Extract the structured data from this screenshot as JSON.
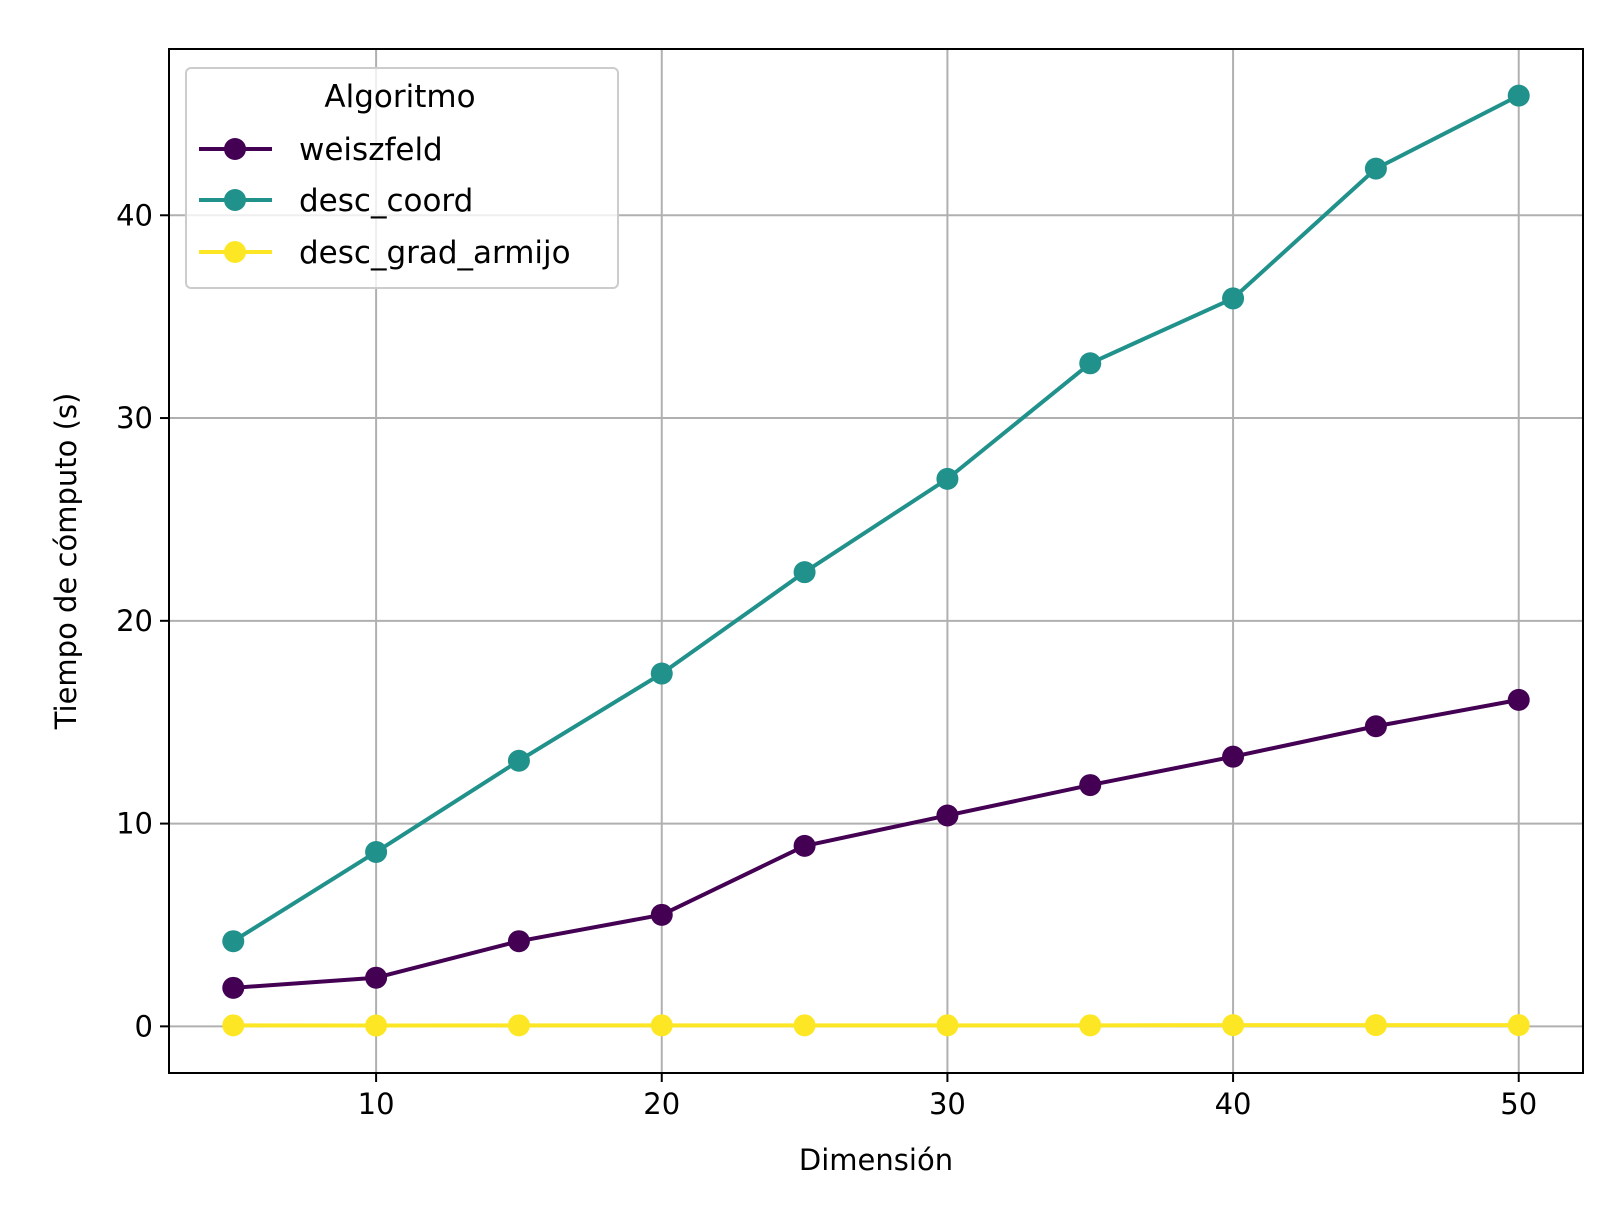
{
  "chart_data": {
    "type": "line",
    "title": "",
    "xlabel": "Dimensión",
    "ylabel": "Tiempo de cómputo (s)",
    "x": [
      5,
      10,
      15,
      20,
      25,
      30,
      35,
      40,
      45,
      50
    ],
    "xlim": [
      2.75,
      52.25
    ],
    "ylim": [
      -2.3,
      48.2
    ],
    "xticks": [
      10,
      20,
      30,
      40,
      50
    ],
    "yticks": [
      0,
      10,
      20,
      30,
      40
    ],
    "grid": true,
    "legend": {
      "title": "Algoritmo",
      "placement": "top-left"
    },
    "series": [
      {
        "name": "weiszfeld",
        "color": "#440154",
        "values": [
          1.9,
          2.4,
          4.2,
          5.5,
          8.9,
          10.4,
          11.9,
          13.3,
          14.8,
          16.1
        ]
      },
      {
        "name": "desc_coord",
        "color": "#21918c",
        "values": [
          4.2,
          8.6,
          13.1,
          17.4,
          22.4,
          27.0,
          32.7,
          35.9,
          42.3,
          45.9
        ]
      },
      {
        "name": "desc_grad_armijo",
        "color": "#fde725",
        "values": [
          0.05,
          0.04,
          0.05,
          0.05,
          0.05,
          0.05,
          0.05,
          0.06,
          0.06,
          0.06
        ]
      }
    ]
  }
}
